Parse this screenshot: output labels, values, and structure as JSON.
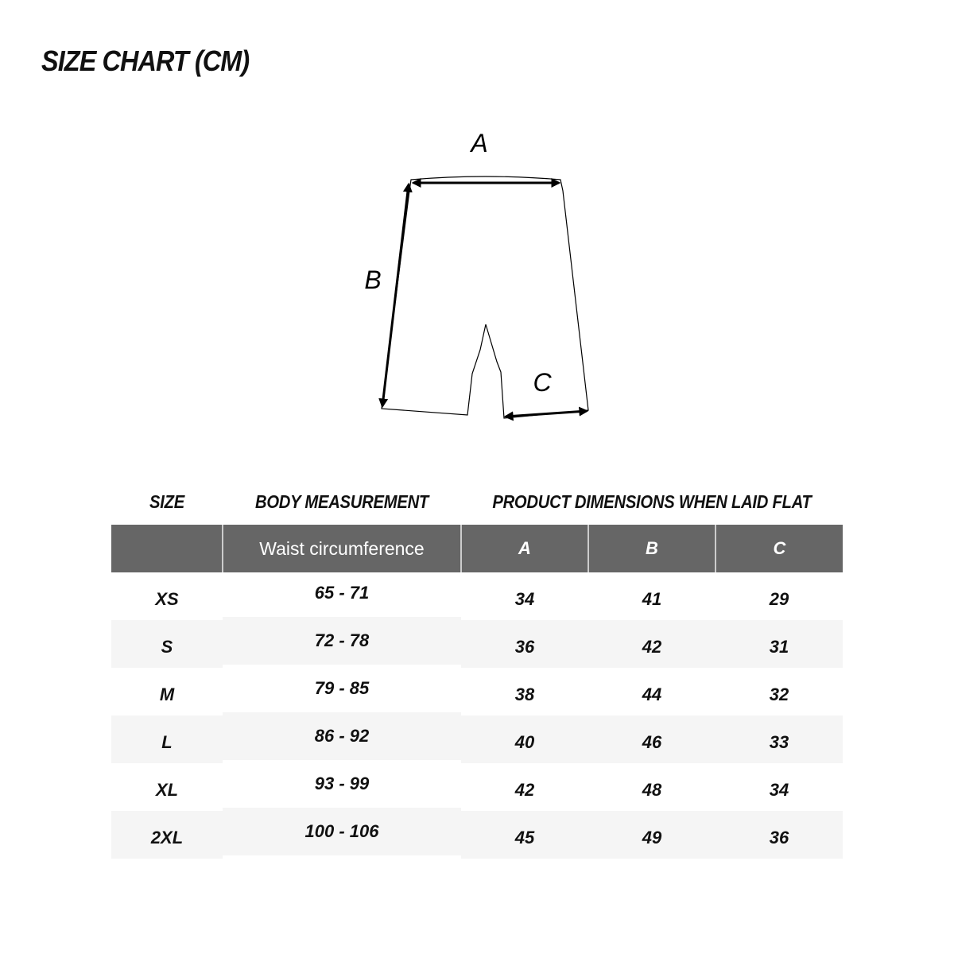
{
  "title": "SIZE CHART (CM)",
  "diagram": {
    "labels": [
      "A",
      "B",
      "C"
    ]
  },
  "table": {
    "group_headers": {
      "size": "SIZE",
      "body": "BODY MEASUREMENT",
      "product": "PRODUCT DIMENSIONS WHEN LAID FLAT"
    },
    "column_headers": [
      "",
      "Waist circumference",
      "A",
      "B",
      "C"
    ],
    "header_color": "#666666",
    "alt_row_color": "#f5f5f5",
    "rows": [
      {
        "size": "XS",
        "waist": "65 - 71",
        "a": "34",
        "b": "41",
        "c": "29"
      },
      {
        "size": "S",
        "waist": "72 - 78",
        "a": "36",
        "b": "42",
        "c": "31"
      },
      {
        "size": "M",
        "waist": "79 - 85",
        "a": "38",
        "b": "44",
        "c": "32"
      },
      {
        "size": "L",
        "waist": "86 - 92",
        "a": "40",
        "b": "46",
        "c": "33"
      },
      {
        "size": "XL",
        "waist": "93 - 99",
        "a": "42",
        "b": "48",
        "c": "34"
      },
      {
        "size": "2XL",
        "waist": "100 - 106",
        "a": "45",
        "b": "49",
        "c": "36"
      }
    ]
  }
}
